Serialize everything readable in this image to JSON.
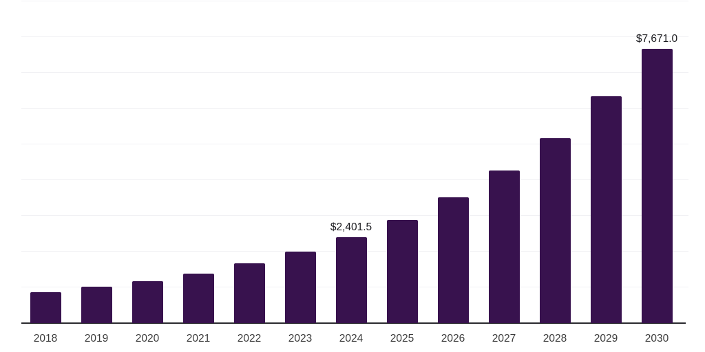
{
  "chart_data": {
    "type": "bar",
    "title": "",
    "xlabel": "",
    "ylabel": "",
    "categories": [
      "2018",
      "2019",
      "2020",
      "2021",
      "2022",
      "2023",
      "2024",
      "2025",
      "2026",
      "2027",
      "2028",
      "2029",
      "2030"
    ],
    "values": [
      865,
      1010,
      1170,
      1385,
      1670,
      1995,
      2401.5,
      2890,
      3515,
      4260,
      5180,
      6350,
      7671
    ],
    "annotations": [
      {
        "category": "2024",
        "label": "$2,401.5"
      },
      {
        "category": "2030",
        "label": "$7,671.0"
      }
    ],
    "ylim": [
      0,
      9000
    ],
    "grid": true,
    "grid_step": 1000,
    "y_tick_labels_visible": false,
    "legend_position": "none",
    "colors": {
      "bar": "#38124E",
      "gridline": "#F1F1F4",
      "axis_line": "#2A2A2E",
      "tick_label": "#3C3C3C",
      "value_label": "#1A1A1E",
      "background": "#FFFFFF"
    }
  }
}
